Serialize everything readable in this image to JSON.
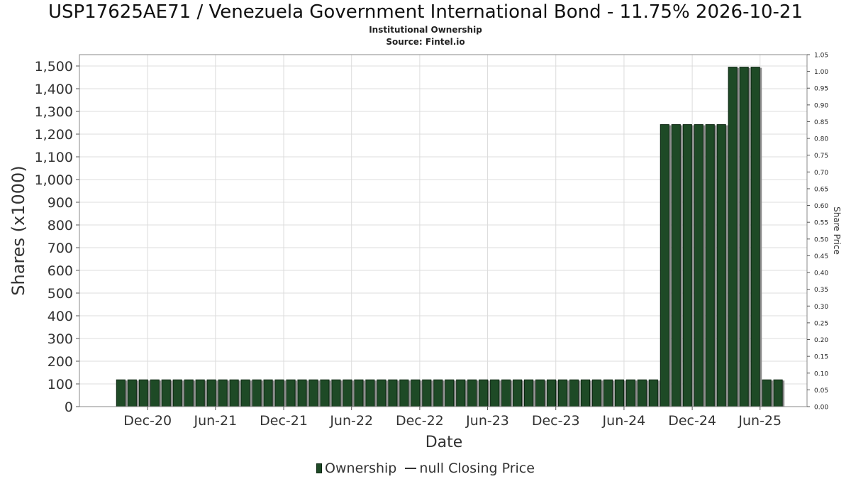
{
  "title": "USP17625AE71 / Venezuela Government International Bond - 11.75% 2026-10-21",
  "subtitle_lines": [
    "Institutional Ownership",
    "Source: Fintel.io"
  ],
  "colors": {
    "bar": "#1e4a26",
    "bar_edge": "#0c2612",
    "bar_shadow": "#8c8c8c",
    "grid": "#dcdcdc",
    "frame": "#888888"
  },
  "legend": {
    "ownership_label": "Ownership",
    "price_label": "null Closing Price"
  },
  "chart_data": {
    "type": "bar",
    "title": "USP17625AE71 / Venezuela Government International Bond - 11.75% 2026-10-21",
    "xlabel": "Date",
    "ylabel": "Shares (x1000)",
    "y2label": "Share Price",
    "ylim": [
      0,
      1550
    ],
    "y2lim": [
      0,
      1.05
    ],
    "grid": true,
    "legend_position": "bottom-center",
    "y_ticks": [
      0,
      100,
      200,
      300,
      400,
      500,
      600,
      700,
      800,
      900,
      1000,
      1100,
      1200,
      1300,
      1400,
      1500
    ],
    "y_tick_labels": [
      "0",
      "100",
      "200",
      "300",
      "400",
      "500",
      "600",
      "700",
      "800",
      "900",
      "1,000",
      "1,100",
      "1,200",
      "1,300",
      "1,400",
      "1,500"
    ],
    "y2_ticks": [
      "0.00",
      "0.05",
      "0.10",
      "0.15",
      "0.20",
      "0.25",
      "0.30",
      "0.35",
      "0.40",
      "0.45",
      "0.50",
      "0.55",
      "0.60",
      "0.65",
      "0.70",
      "0.75",
      "0.80",
      "0.85",
      "0.90",
      "0.95",
      "1.00",
      "1.05"
    ],
    "x_range": [
      "2020-06-01",
      "2025-10-05"
    ],
    "x_ticks": [
      {
        "date": "2020-12-01",
        "label": "Dec-20"
      },
      {
        "date": "2021-06-01",
        "label": "Jun-21"
      },
      {
        "date": "2021-12-01",
        "label": "Dec-21"
      },
      {
        "date": "2022-06-01",
        "label": "Jun-22"
      },
      {
        "date": "2022-12-01",
        "label": "Dec-22"
      },
      {
        "date": "2023-06-01",
        "label": "Jun-23"
      },
      {
        "date": "2023-12-01",
        "label": "Dec-23"
      },
      {
        "date": "2024-06-01",
        "label": "Jun-24"
      },
      {
        "date": "2024-12-01",
        "label": "Dec-24"
      },
      {
        "date": "2025-06-01",
        "label": "Jun-25"
      }
    ],
    "series": [
      {
        "name": "Ownership",
        "x_start": "2020-09-20",
        "step_days": 30.4,
        "values": [
          118,
          118,
          118,
          118,
          118,
          118,
          118,
          118,
          118,
          118,
          118,
          118,
          118,
          118,
          118,
          118,
          118,
          118,
          118,
          118,
          118,
          118,
          118,
          118,
          118,
          118,
          118,
          118,
          118,
          118,
          118,
          118,
          118,
          118,
          118,
          118,
          118,
          118,
          118,
          118,
          118,
          118,
          118,
          118,
          118,
          118,
          118,
          118,
          1242,
          1242,
          1242,
          1242,
          1242,
          1242,
          1495,
          1495,
          1495,
          118,
          118
        ]
      }
    ]
  }
}
